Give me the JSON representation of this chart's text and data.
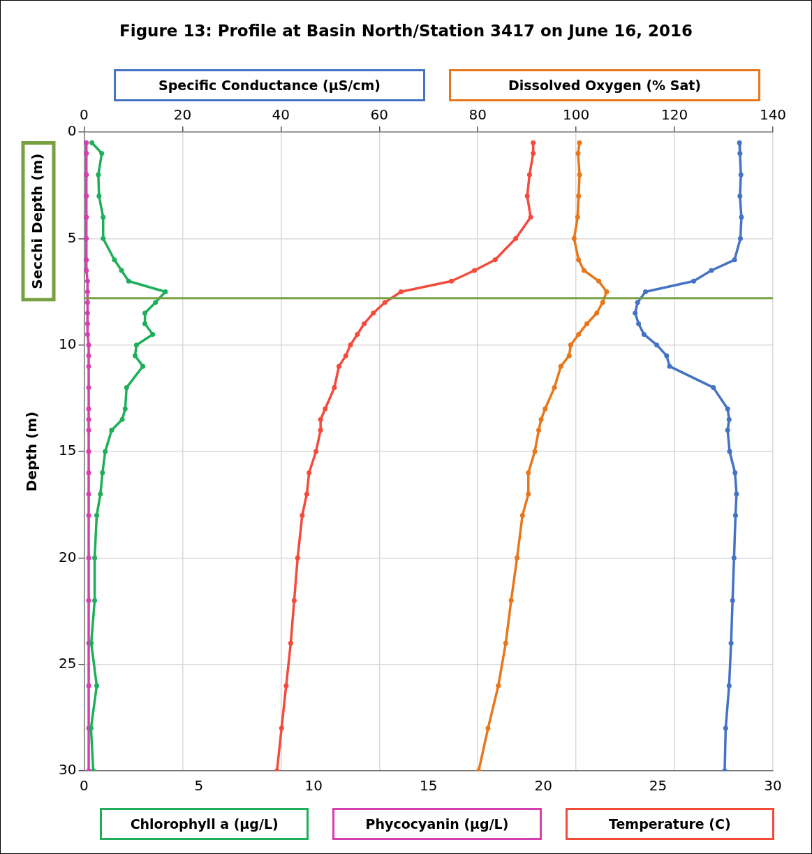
{
  "chart_data": {
    "type": "line",
    "title": "Figure 13: Profile at Basin North/Station 3417 on June 16, 2016",
    "ylabel": "Depth (m)",
    "xlim": [
      0,
      30
    ],
    "xticks": [
      0,
      5,
      10,
      15,
      20,
      25,
      30
    ],
    "x2lim": [
      0,
      140
    ],
    "x2ticks": [
      0,
      20,
      40,
      60,
      80,
      100,
      120,
      140
    ],
    "ylim": [
      30,
      0
    ],
    "yticks": [
      0,
      5,
      10,
      15,
      20,
      25,
      30
    ],
    "grid": true,
    "marker": "circle",
    "line_style": "solid",
    "series": [
      {
        "name": "Specific Conductance (µS/cm)",
        "color": "#4472c4",
        "axis": "x2",
        "x": [
          133.2,
          133.3,
          133.5,
          133.3,
          133.6,
          133.4,
          132.2,
          127.5,
          123.9,
          114.1,
          112.5,
          112.0,
          112.7,
          113.8,
          116.4,
          118.4,
          119.0,
          127.9,
          130.8,
          131.1,
          130.8,
          131.2,
          132.3,
          132.6,
          132.4,
          132.1,
          131.8,
          131.5,
          131.1,
          130.4,
          130.2
        ],
        "values": [
          0.5,
          1,
          2,
          3,
          4,
          5,
          6,
          6.5,
          7,
          7.5,
          8,
          8.5,
          9,
          9.5,
          10,
          10.5,
          11,
          12,
          13,
          13.5,
          14,
          15,
          16,
          17,
          18,
          20,
          22,
          24,
          26,
          28,
          30
        ]
      },
      {
        "name": "Dissolved Oxygen (% Sat)",
        "color": "#e8761a",
        "axis": "x2",
        "x": [
          100.7,
          100.4,
          100.7,
          100.5,
          100.3,
          99.6,
          100.5,
          101.6,
          104.6,
          106.2,
          105.4,
          104.2,
          102.2,
          100.5,
          98.9,
          98.6,
          96.9,
          95.6,
          93.7,
          92.9,
          92.4,
          91.6,
          90.3,
          90.3,
          89.1,
          88.0,
          86.8,
          85.7,
          84.2,
          82.1,
          80.2
        ],
        "values": [
          0.5,
          1,
          2,
          3,
          4,
          5,
          6,
          6.5,
          7,
          7.5,
          8,
          8.5,
          9,
          9.5,
          10,
          10.5,
          11,
          12,
          13,
          13.5,
          14,
          15,
          16,
          17,
          18,
          20,
          22,
          24,
          26,
          28,
          30
        ]
      },
      {
        "name": "Chlorophyll a (µg/L)",
        "color": "#1fae5a",
        "x": [
          0.34,
          0.77,
          0.62,
          0.65,
          0.83,
          0.83,
          1.32,
          1.63,
          1.94,
          3.54,
          3.11,
          2.65,
          2.65,
          2.99,
          2.28,
          2.22,
          2.56,
          1.85,
          1.79,
          1.66,
          1.2,
          0.92,
          0.8,
          0.71,
          0.55,
          0.46,
          0.46,
          0.31,
          0.55,
          0.3,
          0.4
        ],
        "values": [
          0.5,
          1,
          2,
          3,
          4,
          5,
          6,
          6.5,
          7,
          7.5,
          8,
          8.5,
          9,
          9.5,
          10,
          10.5,
          11,
          12,
          13,
          13.5,
          14,
          15,
          16,
          17,
          18,
          20,
          22,
          24,
          26,
          28,
          30
        ]
      },
      {
        "name": "Phycocyanin (µg/L)",
        "color": "#d63fb0",
        "x": [
          0.1,
          0.1,
          0.1,
          0.1,
          0.1,
          0.1,
          0.1,
          0.1,
          0.15,
          0.15,
          0.15,
          0.15,
          0.15,
          0.15,
          0.2,
          0.2,
          0.2,
          0.2,
          0.2,
          0.2,
          0.2,
          0.2,
          0.2,
          0.2,
          0.2,
          0.2,
          0.2,
          0.2,
          0.2,
          0.2,
          0.2
        ],
        "values": [
          0.5,
          1,
          2,
          3,
          4,
          5,
          6,
          6.5,
          7,
          7.5,
          8,
          8.5,
          9,
          9.5,
          10,
          10.5,
          11,
          12,
          13,
          13.5,
          14,
          15,
          16,
          17,
          18,
          20,
          22,
          24,
          26,
          28,
          30
        ]
      },
      {
        "name": "Temperature (C)",
        "color": "#f44a3c",
        "x": [
          19.56,
          19.56,
          19.4,
          19.3,
          19.45,
          18.8,
          17.9,
          17.0,
          16.0,
          13.8,
          13.1,
          12.6,
          12.2,
          11.9,
          11.6,
          11.4,
          11.1,
          10.9,
          10.5,
          10.3,
          10.3,
          10.1,
          9.8,
          9.7,
          9.5,
          9.3,
          9.15,
          9.0,
          8.8,
          8.6,
          8.4
        ],
        "values": [
          0.5,
          1,
          2,
          3,
          4,
          5,
          6,
          6.5,
          7,
          7.5,
          8,
          8.5,
          9,
          9.5,
          10,
          10.5,
          11,
          12,
          13,
          13.5,
          14,
          15,
          16,
          17,
          18,
          20,
          22,
          24,
          26,
          28,
          30
        ]
      }
    ],
    "ref_lines": [
      {
        "axis": "y",
        "value": 7.8,
        "label": "Secchi Depth (m)",
        "color": "#77a042"
      }
    ]
  }
}
